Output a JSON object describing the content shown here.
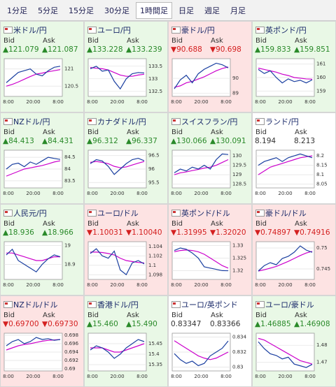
{
  "tabs": {
    "items": [
      "1分足",
      "5分足",
      "15分足",
      "30分足",
      "1時間足",
      "日足",
      "週足",
      "月足"
    ],
    "active": 4
  },
  "labels": {
    "bid": "Bid",
    "ask": "Ask"
  },
  "x_labels": [
    "8:00",
    "20:00",
    "8:00"
  ],
  "colors": {
    "price": "#1a3fa0",
    "ma": "#cc00cc",
    "up": "#2a8a2a",
    "down": "#d42020",
    "flat": "#333333"
  },
  "cards": [
    {
      "name": "米ドル/円",
      "trend": "up",
      "bid": "▲121.079",
      "ask": "▲121.087",
      "ylim": [
        120.2,
        121.3
      ],
      "yticks": [
        121,
        120.5
      ],
      "price": [
        120.6,
        120.75,
        120.9,
        120.95,
        121.0,
        120.85,
        120.8,
        120.95,
        121.05,
        121.08
      ],
      "ma": [
        120.5,
        120.55,
        120.62,
        120.7,
        120.78,
        120.85,
        120.88,
        120.92,
        120.95,
        120.98
      ]
    },
    {
      "name": "ユーロ/円",
      "trend": "up",
      "bid": "▲133.228",
      "ask": "▲133.239",
      "ylim": [
        132.3,
        133.8
      ],
      "yticks": [
        133.5,
        133,
        132.5
      ],
      "price": [
        133.4,
        133.5,
        133.3,
        133.35,
        132.9,
        132.6,
        133.0,
        133.2,
        133.25,
        133.23
      ],
      "ma": [
        133.45,
        133.42,
        133.4,
        133.35,
        133.25,
        133.15,
        133.1,
        133.1,
        133.15,
        133.18
      ]
    },
    {
      "name": "豪ドル/円",
      "trend": "down",
      "bid": "▼90.688",
      "ask": "▼90.698",
      "ylim": [
        88.8,
        91.3
      ],
      "yticks": [
        90,
        89
      ],
      "price": [
        89.3,
        89.9,
        90.2,
        89.7,
        90.3,
        90.6,
        90.8,
        91.0,
        90.9,
        90.69
      ],
      "ma": [
        89.4,
        89.5,
        89.7,
        89.8,
        89.95,
        90.1,
        90.3,
        90.5,
        90.65,
        90.75
      ]
    },
    {
      "name": "英ポンド/円",
      "trend": "up",
      "bid": "▲159.833",
      "ask": "▲159.851",
      "ylim": [
        158.6,
        161.4
      ],
      "yticks": [
        161,
        160,
        159
      ],
      "price": [
        160.6,
        160.3,
        160.5,
        160.0,
        159.6,
        159.9,
        159.7,
        159.8,
        159.6,
        159.83
      ],
      "ma": [
        160.7,
        160.6,
        160.5,
        160.4,
        160.25,
        160.15,
        160.0,
        159.95,
        159.9,
        159.88
      ]
    },
    {
      "name": "NZドル/円",
      "trend": "up",
      "bid": "▲84.413",
      "ask": "▲84.431",
      "ylim": [
        83.2,
        84.8
      ],
      "yticks": [
        84.5,
        84,
        83.5
      ],
      "price": [
        84.0,
        84.2,
        84.25,
        84.1,
        84.3,
        84.2,
        84.35,
        84.5,
        84.45,
        84.41
      ],
      "ma": [
        83.7,
        83.8,
        83.9,
        84.0,
        84.05,
        84.1,
        84.15,
        84.22,
        84.3,
        84.35
      ]
    },
    {
      "name": "カナダドル/円",
      "trend": "up",
      "bid": "▲96.312",
      "ask": "▲96.337",
      "ylim": [
        95.3,
        96.7
      ],
      "yticks": [
        96.5,
        96,
        95.5
      ],
      "price": [
        96.2,
        96.35,
        96.3,
        96.1,
        95.8,
        96.0,
        96.2,
        96.35,
        96.4,
        96.31
      ],
      "ma": [
        96.25,
        96.28,
        96.25,
        96.2,
        96.1,
        96.05,
        96.08,
        96.15,
        96.22,
        96.28
      ]
    },
    {
      "name": "スイスフラン/円",
      "trend": "up",
      "bid": "▲130.066",
      "ask": "▲130.091",
      "ylim": [
        128.3,
        130.3
      ],
      "yticks": [
        130,
        129.5,
        129,
        128.5
      ],
      "price": [
        129.1,
        129.3,
        129.2,
        129.4,
        129.3,
        129.5,
        129.3,
        129.8,
        130.1,
        130.07
      ],
      "ma": [
        129.0,
        129.1,
        129.15,
        129.22,
        129.28,
        129.35,
        129.4,
        129.5,
        129.65,
        129.8
      ]
    },
    {
      "name": "ランド/円",
      "trend": "flat",
      "bid": "8.194",
      "ask": "8.213",
      "ylim": [
        8.03,
        8.23
      ],
      "yticks": [
        8.2,
        8.15,
        8.1,
        8.05
      ],
      "price": [
        8.15,
        8.17,
        8.18,
        8.19,
        8.17,
        8.19,
        8.2,
        8.21,
        8.2,
        8.19
      ],
      "ma": [
        8.1,
        8.12,
        8.14,
        8.15,
        8.16,
        8.17,
        8.18,
        8.19,
        8.195,
        8.2
      ]
    },
    {
      "name": "人民元/円",
      "trend": "up",
      "bid": "▲18.936",
      "ask": "▲18.966",
      "ylim": [
        18.82,
        19.02
      ],
      "yticks": [
        19,
        18.9
      ],
      "price": [
        18.95,
        18.98,
        18.92,
        18.9,
        18.88,
        18.86,
        18.9,
        18.93,
        18.95,
        18.94
      ],
      "ma": [
        18.96,
        18.96,
        18.95,
        18.94,
        18.93,
        18.92,
        18.92,
        18.93,
        18.94,
        18.94
      ]
    },
    {
      "name": "ユーロ/ドル",
      "trend": "down",
      "bid": "▼1.10031",
      "ask": "▼1.10040",
      "ylim": [
        1.097,
        1.105
      ],
      "yticks": [
        1.104,
        1.102,
        1.1,
        1.098
      ],
      "price": [
        1.1025,
        1.1035,
        1.102,
        1.1015,
        1.103,
        1.099,
        1.098,
        1.1005,
        1.101,
        1.1003
      ],
      "ma": [
        1.1028,
        1.1028,
        1.1027,
        1.1025,
        1.1022,
        1.1015,
        1.101,
        1.1008,
        1.1006,
        1.1005
      ]
    },
    {
      "name": "英ポンド/ドル",
      "trend": "down",
      "bid": "▼1.31995",
      "ask": "▼1.32020",
      "ylim": [
        1.3165,
        1.3315
      ],
      "yticks": [
        1.33,
        1.325,
        1.32
      ],
      "price": [
        1.328,
        1.329,
        1.3285,
        1.327,
        1.325,
        1.3215,
        1.321,
        1.3205,
        1.32,
        1.31995
      ],
      "ma": [
        1.3275,
        1.328,
        1.3282,
        1.328,
        1.3275,
        1.3265,
        1.325,
        1.3235,
        1.322,
        1.321
      ]
    },
    {
      "name": "豪ドル/ドル",
      "trend": "down",
      "bid": "▼0.74897",
      "ask": "▼0.74916",
      "ylim": [
        0.7425,
        0.7515
      ],
      "yticks": [
        0.75,
        0.745
      ],
      "price": [
        0.7445,
        0.7458,
        0.7465,
        0.746,
        0.7475,
        0.748,
        0.749,
        0.7505,
        0.7495,
        0.74897
      ],
      "ma": [
        0.7445,
        0.7448,
        0.7452,
        0.7456,
        0.7462,
        0.7468,
        0.7475,
        0.7482,
        0.7488,
        0.7492
      ]
    },
    {
      "name": "NZドル/ドル",
      "trend": "down",
      "bid": "▼0.69700",
      "ask": "▼0.69730",
      "ylim": [
        0.6895,
        0.6985
      ],
      "yticks": [
        0.698,
        0.696,
        0.694,
        0.692,
        0.69
      ],
      "price": [
        0.6955,
        0.6965,
        0.697,
        0.696,
        0.6965,
        0.6975,
        0.697,
        0.6972,
        0.6968,
        0.697
      ],
      "ma": [
        0.6945,
        0.695,
        0.6955,
        0.6958,
        0.696,
        0.6963,
        0.6966,
        0.6968,
        0.6969,
        0.697
      ]
    },
    {
      "name": "香港ドル/円",
      "trend": "up",
      "bid": "▲15.460",
      "ask": "▲15.490",
      "ylim": [
        15.32,
        15.5
      ],
      "yticks": [
        15.45,
        15.4,
        15.35
      ],
      "price": [
        15.42,
        15.44,
        15.43,
        15.41,
        15.38,
        15.4,
        15.43,
        15.45,
        15.47,
        15.46
      ],
      "ma": [
        15.43,
        15.43,
        15.43,
        15.42,
        15.41,
        15.41,
        15.42,
        15.43,
        15.44,
        15.45
      ]
    },
    {
      "name": "ユーロ/英ポンド",
      "trend": "flat",
      "bid": "0.83347",
      "ask": "0.83366",
      "ylim": [
        0.8295,
        0.8345
      ],
      "yticks": [
        0.834,
        0.832,
        0.83
      ],
      "price": [
        0.8318,
        0.831,
        0.8305,
        0.8308,
        0.8302,
        0.8305,
        0.8315,
        0.832,
        0.8325,
        0.83347
      ],
      "ma": [
        0.8335,
        0.833,
        0.8325,
        0.832,
        0.8315,
        0.8312,
        0.831,
        0.8312,
        0.8316,
        0.832
      ]
    },
    {
      "name": "ユーロ/豪ドル",
      "trend": "up",
      "bid": "▲1.46885",
      "ask": "▲1.46908",
      "ylim": [
        1.465,
        1.487
      ],
      "yticks": [
        1.48,
        1.47
      ],
      "price": [
        1.482,
        1.478,
        1.475,
        1.474,
        1.472,
        1.473,
        1.469,
        1.468,
        1.467,
        1.46885
      ],
      "ma": [
        1.484,
        1.483,
        1.481,
        1.479,
        1.477,
        1.475,
        1.473,
        1.471,
        1.47,
        1.469
      ]
    }
  ]
}
